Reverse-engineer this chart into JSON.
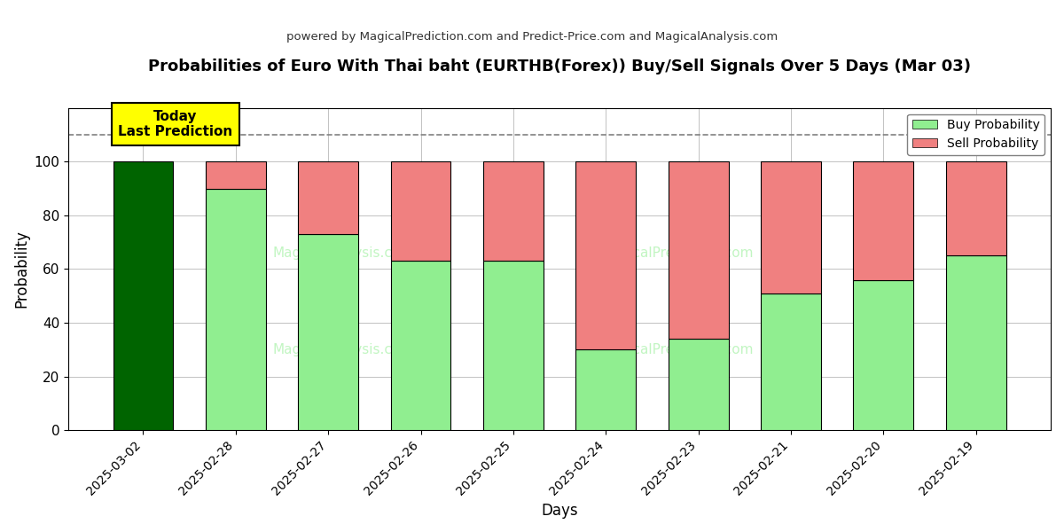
{
  "title": "Probabilities of Euro With Thai baht (EURTHB(Forex)) Buy/Sell Signals Over 5 Days (Mar 03)",
  "subtitle": "powered by MagicalPrediction.com and Predict-Price.com and MagicalAnalysis.com",
  "xlabel": "Days",
  "ylabel": "Probability",
  "categories": [
    "2025-03-02",
    "2025-02-28",
    "2025-02-27",
    "2025-02-26",
    "2025-02-25",
    "2025-02-24",
    "2025-02-23",
    "2025-02-21",
    "2025-02-20",
    "2025-02-19"
  ],
  "buy_values": [
    100,
    90,
    73,
    63,
    63,
    30,
    34,
    51,
    56,
    65
  ],
  "sell_values": [
    0,
    10,
    27,
    37,
    37,
    70,
    66,
    49,
    44,
    35
  ],
  "buy_color_today": "#006400",
  "buy_color_normal": "#90EE90",
  "sell_color": "#F08080",
  "today_annotation_text": "Today\nLast Prediction",
  "today_annotation_bg": "#FFFF00",
  "dashed_line_y": 110,
  "ylim": [
    0,
    120
  ],
  "yticks": [
    0,
    20,
    40,
    60,
    80,
    100
  ],
  "legend_buy_label": "Buy Probability",
  "legend_sell_label": "Sell Probability",
  "background_color": "#ffffff",
  "grid_color": "#aaaaaa"
}
